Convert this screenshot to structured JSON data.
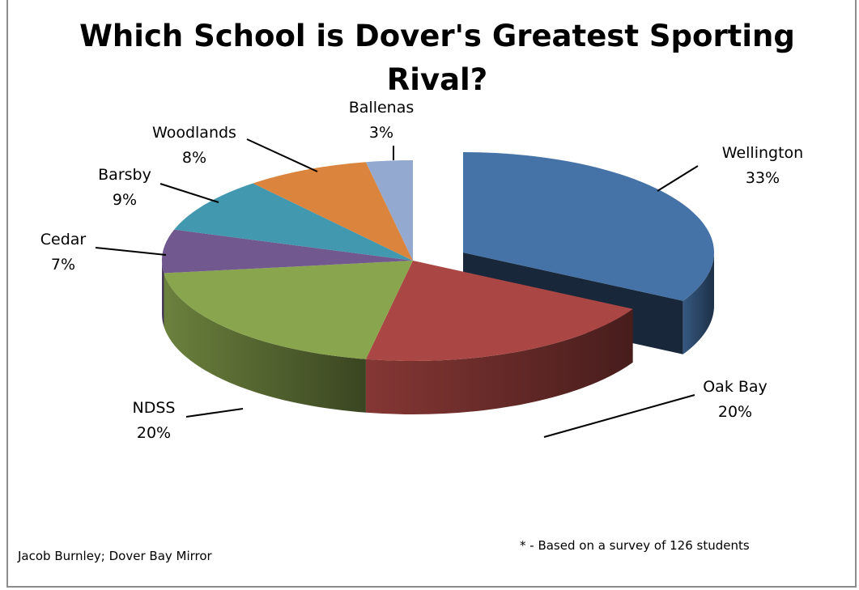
{
  "chart_data": {
    "type": "pie",
    "title": "Which School is Dover's Greatest Sporting Rival?",
    "exploded": [
      "Wellington"
    ],
    "slices": [
      {
        "name": "Wellington",
        "value": 33,
        "value_label": "33%",
        "color": "#4572A7"
      },
      {
        "name": "Oak Bay",
        "value": 20,
        "value_label": "20%",
        "color": "#AA4643"
      },
      {
        "name": "NDSS",
        "value": 20,
        "value_label": "20%",
        "color": "#89A54E"
      },
      {
        "name": "Cedar",
        "value": 7,
        "value_label": "7%",
        "color": "#71588F"
      },
      {
        "name": "Barsby",
        "value": 9,
        "value_label": "9%",
        "color": "#4198AF"
      },
      {
        "name": "Woodlands",
        "value": 8,
        "value_label": "8%",
        "color": "#DB843D"
      },
      {
        "name": "Ballenas",
        "value": 3,
        "value_label": "3%",
        "color": "#93A9CF"
      }
    ]
  },
  "footer": {
    "source": "Jacob Burnley; Dover Bay Mirror",
    "note": "* - Based on a survey of 126 students"
  }
}
